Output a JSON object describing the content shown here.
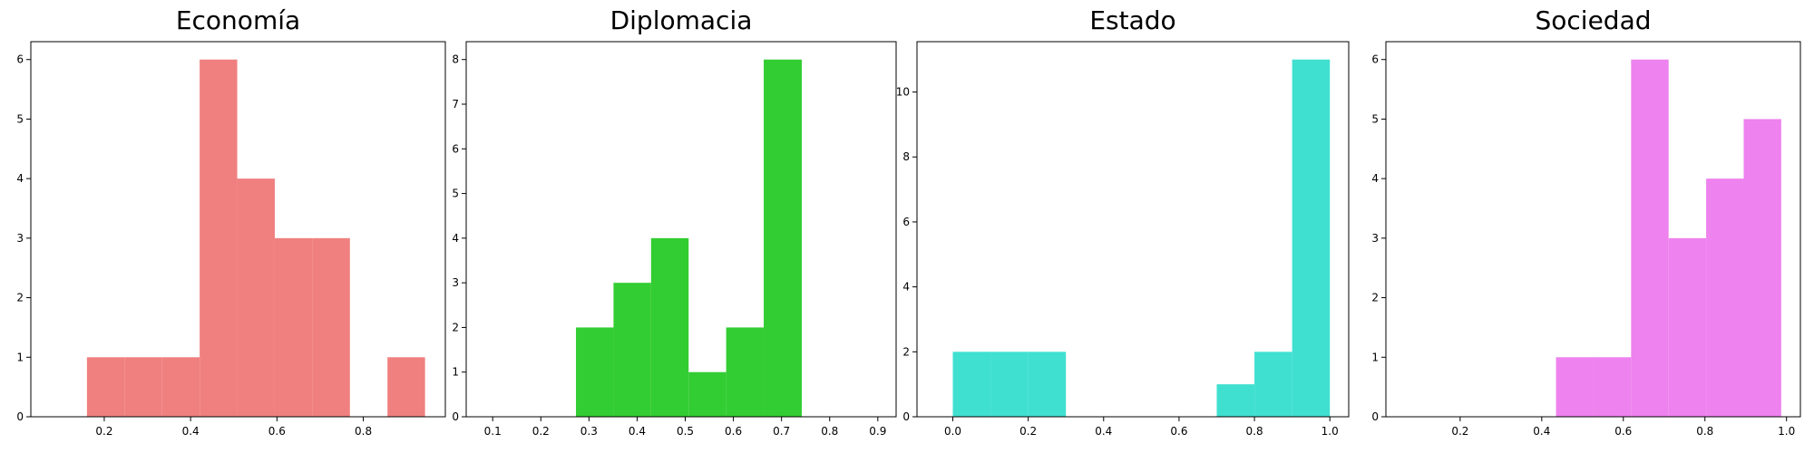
{
  "chart_data": [
    {
      "type": "histogram",
      "title": "Economía",
      "color": "#f08080",
      "bins": [
        0.16,
        0.247,
        0.334,
        0.421,
        0.508,
        0.595,
        0.682,
        0.769,
        0.856,
        0.943
      ],
      "values": [
        1,
        1,
        1,
        6,
        4,
        3,
        3,
        0,
        1
      ],
      "xlim": [
        0.03,
        0.99
      ],
      "ylim": [
        0,
        6.3
      ],
      "xticks": [
        0.2,
        0.4,
        0.6,
        0.8
      ],
      "yticks": [
        0,
        1,
        2,
        3,
        4,
        5,
        6
      ]
    },
    {
      "type": "histogram",
      "title": "Diplomacia",
      "color": "#32cd32",
      "bins": [
        0.273,
        0.351,
        0.429,
        0.507,
        0.585,
        0.663,
        0.742
      ],
      "values": [
        2,
        3,
        4,
        1,
        2,
        8
      ],
      "xlim": [
        0.045,
        0.938
      ],
      "ylim": [
        0,
        8.4
      ],
      "xticks": [
        0.1,
        0.2,
        0.3,
        0.4,
        0.5,
        0.6,
        0.7,
        0.8,
        0.9
      ],
      "yticks": [
        0,
        1,
        2,
        3,
        4,
        5,
        6,
        7,
        8
      ]
    },
    {
      "type": "histogram",
      "title": "Estado",
      "color": "#40e0d0",
      "bins": [
        0,
        0.1,
        0.2,
        0.3,
        0.4,
        0.5,
        0.6,
        0.7,
        0.8,
        0.9,
        1
      ],
      "values": [
        2,
        2,
        2,
        0,
        0,
        0,
        0,
        1,
        2,
        11
      ],
      "xlim": [
        -0.095,
        1.05
      ],
      "ylim": [
        0,
        11.55
      ],
      "xticks": [
        {
          "value": 0,
          "label": "0.0"
        },
        0.2,
        0.4,
        0.6,
        0.8,
        {
          "value": 1,
          "label": "1.0"
        }
      ],
      "yticks": [
        0,
        2,
        4,
        6,
        8,
        10
      ]
    },
    {
      "type": "histogram",
      "title": "Sociedad",
      "color": "#ee82ee",
      "bins": [
        0.435,
        0.527,
        0.619,
        0.711,
        0.803,
        0.895,
        0.987
      ],
      "values": [
        1,
        1,
        6,
        3,
        4,
        5
      ],
      "xlim": [
        0.018,
        1.034
      ],
      "ylim": [
        0,
        6.3
      ],
      "xticks": [
        0.2,
        0.4,
        0.6,
        0.8,
        {
          "value": 1,
          "label": "1.0"
        }
      ],
      "yticks": [
        0,
        1,
        2,
        3,
        4,
        5,
        6
      ]
    }
  ]
}
